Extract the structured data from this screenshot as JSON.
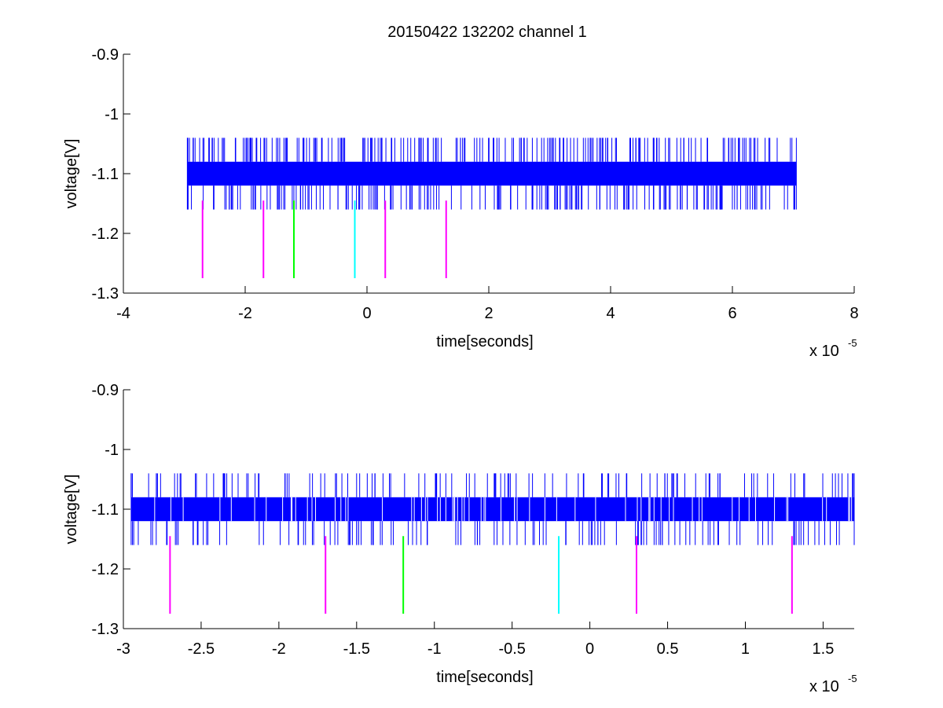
{
  "figure_title": "20150422 132202 channel 1",
  "chart_data": [
    {
      "type": "line",
      "title": "20150422 132202 channel 1",
      "xlabel": "time[seconds]",
      "ylabel": "voltage[V]",
      "x_exponent_label": "x 10",
      "x_exponent_power": "-5",
      "xlim": [
        -4,
        8
      ],
      "ylim": [
        -1.3,
        -0.9
      ],
      "xticks": [
        -4,
        -2,
        0,
        2,
        4,
        6,
        8
      ],
      "xtick_labels": [
        "-4",
        "-2",
        "0",
        "2",
        "4",
        "6",
        "8"
      ],
      "yticks": [
        -1.3,
        -1.2,
        -1.1,
        -1,
        -0.9
      ],
      "ytick_labels": [
        "-1.3",
        "-1.2",
        "-1.1",
        "-1",
        "-0.9"
      ],
      "grid": false,
      "signal": {
        "color": "#0000ff",
        "x_range": [
          -2.95,
          7.05
        ],
        "band": [
          -1.12,
          -1.08
        ],
        "spike_top": -1.04,
        "spike_bottom": -1.16
      },
      "markers": [
        {
          "x": -2.7,
          "color": "#ff00ff",
          "y_range": [
            -1.275,
            -1.145
          ]
        },
        {
          "x": -1.7,
          "color": "#ff00ff",
          "y_range": [
            -1.275,
            -1.145
          ]
        },
        {
          "x": -1.2,
          "color": "#00ff00",
          "y_range": [
            -1.275,
            -1.145
          ]
        },
        {
          "x": -0.2,
          "color": "#00ffff",
          "y_range": [
            -1.275,
            -1.145
          ]
        },
        {
          "x": 0.3,
          "color": "#ff00ff",
          "y_range": [
            -1.275,
            -1.145
          ]
        },
        {
          "x": 1.3,
          "color": "#ff00ff",
          "y_range": [
            -1.275,
            -1.145
          ]
        }
      ]
    },
    {
      "type": "line",
      "title": "",
      "xlabel": "time[seconds]",
      "ylabel": "voltage[V]",
      "x_exponent_label": "x 10",
      "x_exponent_power": "-5",
      "xlim": [
        -3.0,
        1.7
      ],
      "ylim": [
        -1.3,
        -0.9
      ],
      "xticks": [
        -3,
        -2.5,
        -2,
        -1.5,
        -1,
        -0.5,
        0,
        0.5,
        1,
        1.5
      ],
      "xtick_labels": [
        "-3",
        "-2.5",
        "-2",
        "-1.5",
        "-1",
        "-0.5",
        "0",
        "0.5",
        "1",
        "1.5"
      ],
      "yticks": [
        -1.3,
        -1.2,
        -1.1,
        -1,
        -0.9
      ],
      "ytick_labels": [
        "-1.3",
        "-1.2",
        "-1.1",
        "-1",
        "-0.9"
      ],
      "grid": false,
      "signal": {
        "color": "#0000ff",
        "x_range": [
          -2.95,
          1.7
        ],
        "band": [
          -1.12,
          -1.08
        ],
        "spike_top": -1.04,
        "spike_bottom": -1.16
      },
      "markers": [
        {
          "x": -2.7,
          "color": "#ff00ff",
          "y_range": [
            -1.275,
            -1.145
          ]
        },
        {
          "x": -1.7,
          "color": "#ff00ff",
          "y_range": [
            -1.275,
            -1.145
          ]
        },
        {
          "x": -1.2,
          "color": "#00ff00",
          "y_range": [
            -1.275,
            -1.145
          ]
        },
        {
          "x": -0.2,
          "color": "#00ffff",
          "y_range": [
            -1.275,
            -1.145
          ]
        },
        {
          "x": 0.3,
          "color": "#ff00ff",
          "y_range": [
            -1.275,
            -1.145
          ]
        },
        {
          "x": 1.3,
          "color": "#ff00ff",
          "y_range": [
            -1.275,
            -1.145
          ]
        }
      ]
    }
  ]
}
